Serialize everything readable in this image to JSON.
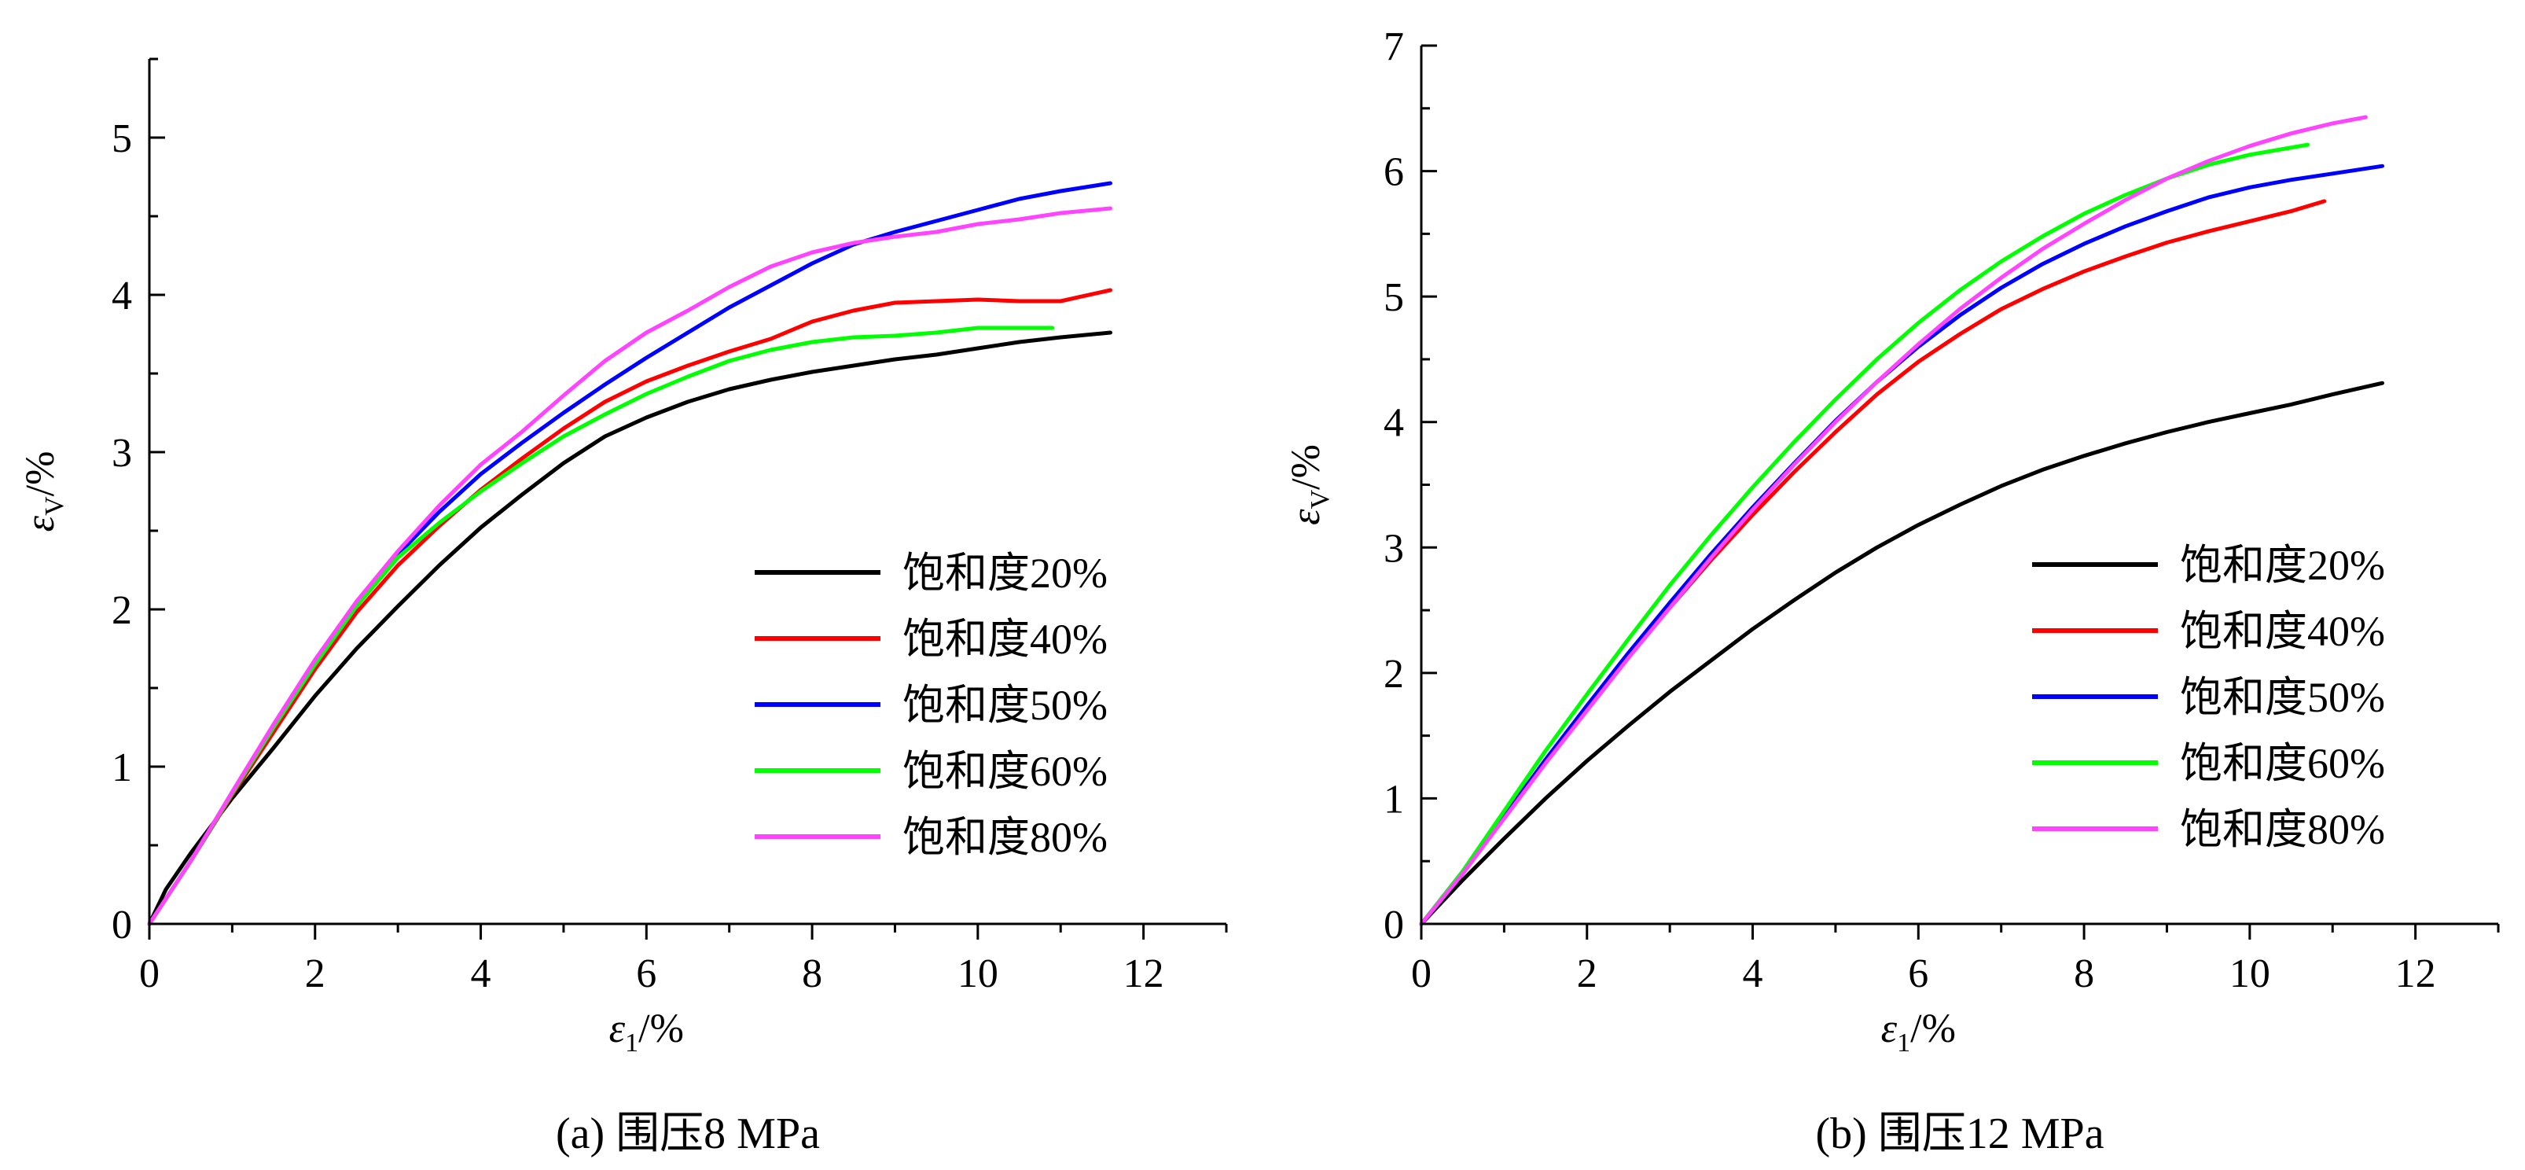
{
  "chart_data": [
    {
      "type": "line",
      "caption": "(a) 围压8 MPa",
      "xlabel": {
        "symbol": "ε",
        "subscript": "1",
        "unit": "/%"
      },
      "ylabel": {
        "symbol": "ε",
        "subscript": "V",
        "unit": "/%"
      },
      "xlim": [
        0,
        13
      ],
      "ylim": [
        0,
        5.5
      ],
      "xticks": [
        "0",
        "2",
        "4",
        "6",
        "8",
        "10",
        "12"
      ],
      "yticks": [
        "0",
        "1",
        "2",
        "3",
        "4",
        "5"
      ],
      "legend_placement": "lower-right",
      "grid": false,
      "series": [
        {
          "name": "饱和度20%",
          "color": "#000000",
          "x": [
            0,
            0.2,
            0.5,
            1.0,
            1.5,
            2.0,
            2.5,
            3.0,
            3.5,
            4.0,
            4.5,
            5.0,
            5.5,
            6.0,
            6.5,
            7.0,
            7.5,
            8.0,
            8.5,
            9.0,
            9.5,
            10.0,
            10.5,
            11.0,
            11.6
          ],
          "y": [
            0,
            0.22,
            0.45,
            0.8,
            1.12,
            1.45,
            1.75,
            2.02,
            2.28,
            2.52,
            2.73,
            2.93,
            3.1,
            3.22,
            3.32,
            3.4,
            3.46,
            3.51,
            3.55,
            3.59,
            3.62,
            3.66,
            3.7,
            3.73,
            3.76
          ]
        },
        {
          "name": "饱和度40%",
          "color": "#ff0000",
          "x": [
            0,
            0.5,
            1.0,
            1.5,
            2.0,
            2.5,
            3.0,
            3.5,
            4.0,
            4.5,
            5.0,
            5.5,
            6.0,
            6.5,
            7.0,
            7.5,
            8.0,
            8.5,
            9.0,
            9.5,
            10.0,
            10.5,
            11.0,
            11.6
          ],
          "y": [
            0,
            0.4,
            0.82,
            1.22,
            1.62,
            1.98,
            2.28,
            2.53,
            2.76,
            2.96,
            3.15,
            3.32,
            3.45,
            3.55,
            3.64,
            3.72,
            3.83,
            3.9,
            3.95,
            3.96,
            3.97,
            3.96,
            3.96,
            4.03
          ]
        },
        {
          "name": "饱和度50%",
          "color": "#0000ff",
          "x": [
            0,
            0.5,
            1.0,
            1.5,
            2.0,
            2.5,
            3.0,
            3.5,
            4.0,
            4.5,
            5.0,
            5.5,
            6.0,
            6.5,
            7.0,
            7.5,
            8.0,
            8.5,
            9.0,
            9.5,
            10.0,
            10.5,
            11.0,
            11.6
          ],
          "y": [
            0,
            0.4,
            0.83,
            1.25,
            1.65,
            2.02,
            2.35,
            2.62,
            2.86,
            3.06,
            3.25,
            3.43,
            3.6,
            3.76,
            3.92,
            4.06,
            4.2,
            4.32,
            4.4,
            4.47,
            4.54,
            4.61,
            4.66,
            4.71
          ]
        },
        {
          "name": "饱和度60%",
          "color": "#00ff00",
          "x": [
            0,
            0.5,
            1.0,
            1.5,
            2.0,
            2.5,
            3.0,
            3.5,
            4.0,
            4.5,
            5.0,
            5.5,
            6.0,
            6.5,
            7.0,
            7.5,
            8.0,
            8.5,
            9.0,
            9.5,
            10.0,
            10.5,
            10.9
          ],
          "y": [
            0,
            0.4,
            0.83,
            1.25,
            1.65,
            2.02,
            2.33,
            2.55,
            2.75,
            2.93,
            3.1,
            3.24,
            3.37,
            3.48,
            3.58,
            3.65,
            3.7,
            3.73,
            3.74,
            3.76,
            3.79,
            3.79,
            3.79
          ]
        },
        {
          "name": "饱和度80%",
          "color": "#ff44ff",
          "x": [
            0,
            0.5,
            1.0,
            1.5,
            2.0,
            2.5,
            3.0,
            3.5,
            4.0,
            4.5,
            5.0,
            5.5,
            6.0,
            6.5,
            7.0,
            7.5,
            8.0,
            8.5,
            9.0,
            9.5,
            10.0,
            10.5,
            11.0,
            11.6
          ],
          "y": [
            0,
            0.4,
            0.84,
            1.27,
            1.68,
            2.05,
            2.37,
            2.66,
            2.92,
            3.13,
            3.36,
            3.58,
            3.76,
            3.9,
            4.05,
            4.18,
            4.27,
            4.33,
            4.37,
            4.4,
            4.45,
            4.48,
            4.52,
            4.55
          ]
        }
      ]
    },
    {
      "type": "line",
      "caption": "(b) 围压12 MPa",
      "xlabel": {
        "symbol": "ε",
        "subscript": "1",
        "unit": "/%"
      },
      "ylabel": {
        "symbol": "ε",
        "subscript": "V",
        "unit": "/%"
      },
      "xlim": [
        0,
        13
      ],
      "ylim": [
        0,
        7
      ],
      "xticks": [
        "0",
        "2",
        "4",
        "6",
        "8",
        "10",
        "12"
      ],
      "yticks": [
        "0",
        "1",
        "2",
        "3",
        "4",
        "5",
        "6",
        "7"
      ],
      "legend_placement": "lower-right",
      "grid": false,
      "series": [
        {
          "name": "饱和度20%",
          "color": "#000000",
          "x": [
            0,
            0.5,
            1.0,
            1.5,
            2.0,
            2.5,
            3.0,
            3.5,
            4.0,
            4.5,
            5.0,
            5.5,
            6.0,
            6.5,
            7.0,
            7.5,
            8.0,
            8.5,
            9.0,
            9.5,
            10.0,
            10.5,
            11.0,
            11.6
          ],
          "y": [
            0,
            0.35,
            0.68,
            1.0,
            1.3,
            1.58,
            1.85,
            2.1,
            2.35,
            2.58,
            2.8,
            3.0,
            3.18,
            3.34,
            3.49,
            3.62,
            3.73,
            3.83,
            3.92,
            4.0,
            4.07,
            4.14,
            4.22,
            4.31
          ]
        },
        {
          "name": "饱和度40%",
          "color": "#ff0000",
          "x": [
            0,
            0.5,
            1.0,
            1.5,
            2.0,
            2.5,
            3.0,
            3.5,
            4.0,
            4.5,
            5.0,
            5.5,
            6.0,
            6.5,
            7.0,
            7.5,
            8.0,
            8.5,
            9.0,
            9.5,
            10.0,
            10.5,
            10.9
          ],
          "y": [
            0,
            0.4,
            0.85,
            1.3,
            1.72,
            2.13,
            2.52,
            2.9,
            3.26,
            3.6,
            3.92,
            4.22,
            4.48,
            4.7,
            4.9,
            5.06,
            5.2,
            5.32,
            5.43,
            5.52,
            5.6,
            5.68,
            5.76
          ]
        },
        {
          "name": "饱和度50%",
          "color": "#0000ff",
          "x": [
            0,
            0.5,
            1.0,
            1.5,
            2.0,
            2.5,
            3.0,
            3.5,
            4.0,
            4.5,
            5.0,
            5.5,
            6.0,
            6.5,
            7.0,
            7.5,
            8.0,
            8.5,
            9.0,
            9.5,
            10.0,
            10.5,
            11.0,
            11.6
          ],
          "y": [
            0,
            0.4,
            0.86,
            1.31,
            1.74,
            2.16,
            2.56,
            2.95,
            3.32,
            3.67,
            4.01,
            4.32,
            4.6,
            4.85,
            5.07,
            5.26,
            5.42,
            5.56,
            5.68,
            5.79,
            5.87,
            5.93,
            5.98,
            6.04
          ]
        },
        {
          "name": "饱和度60%",
          "color": "#00ff00",
          "x": [
            0,
            0.5,
            1.0,
            1.5,
            2.0,
            2.5,
            3.0,
            3.5,
            4.0,
            4.5,
            5.0,
            5.5,
            6.0,
            6.5,
            7.0,
            7.5,
            8.0,
            8.5,
            9.0,
            9.5,
            10.0,
            10.7
          ],
          "y": [
            0,
            0.42,
            0.9,
            1.38,
            1.83,
            2.27,
            2.7,
            3.1,
            3.48,
            3.84,
            4.18,
            4.5,
            4.79,
            5.05,
            5.28,
            5.48,
            5.66,
            5.81,
            5.94,
            6.05,
            6.13,
            6.21
          ]
        },
        {
          "name": "饱和度80%",
          "color": "#ff44ff",
          "x": [
            0,
            0.5,
            1.0,
            1.5,
            2.0,
            2.5,
            3.0,
            3.5,
            4.0,
            4.5,
            5.0,
            5.5,
            6.0,
            6.5,
            7.0,
            7.5,
            8.0,
            8.5,
            9.0,
            9.5,
            10.0,
            10.5,
            11.0,
            11.4
          ],
          "y": [
            0,
            0.4,
            0.84,
            1.28,
            1.7,
            2.12,
            2.52,
            2.92,
            3.3,
            3.66,
            4.0,
            4.32,
            4.62,
            4.9,
            5.15,
            5.38,
            5.58,
            5.77,
            5.94,
            6.08,
            6.2,
            6.3,
            6.38,
            6.43
          ]
        }
      ]
    }
  ]
}
